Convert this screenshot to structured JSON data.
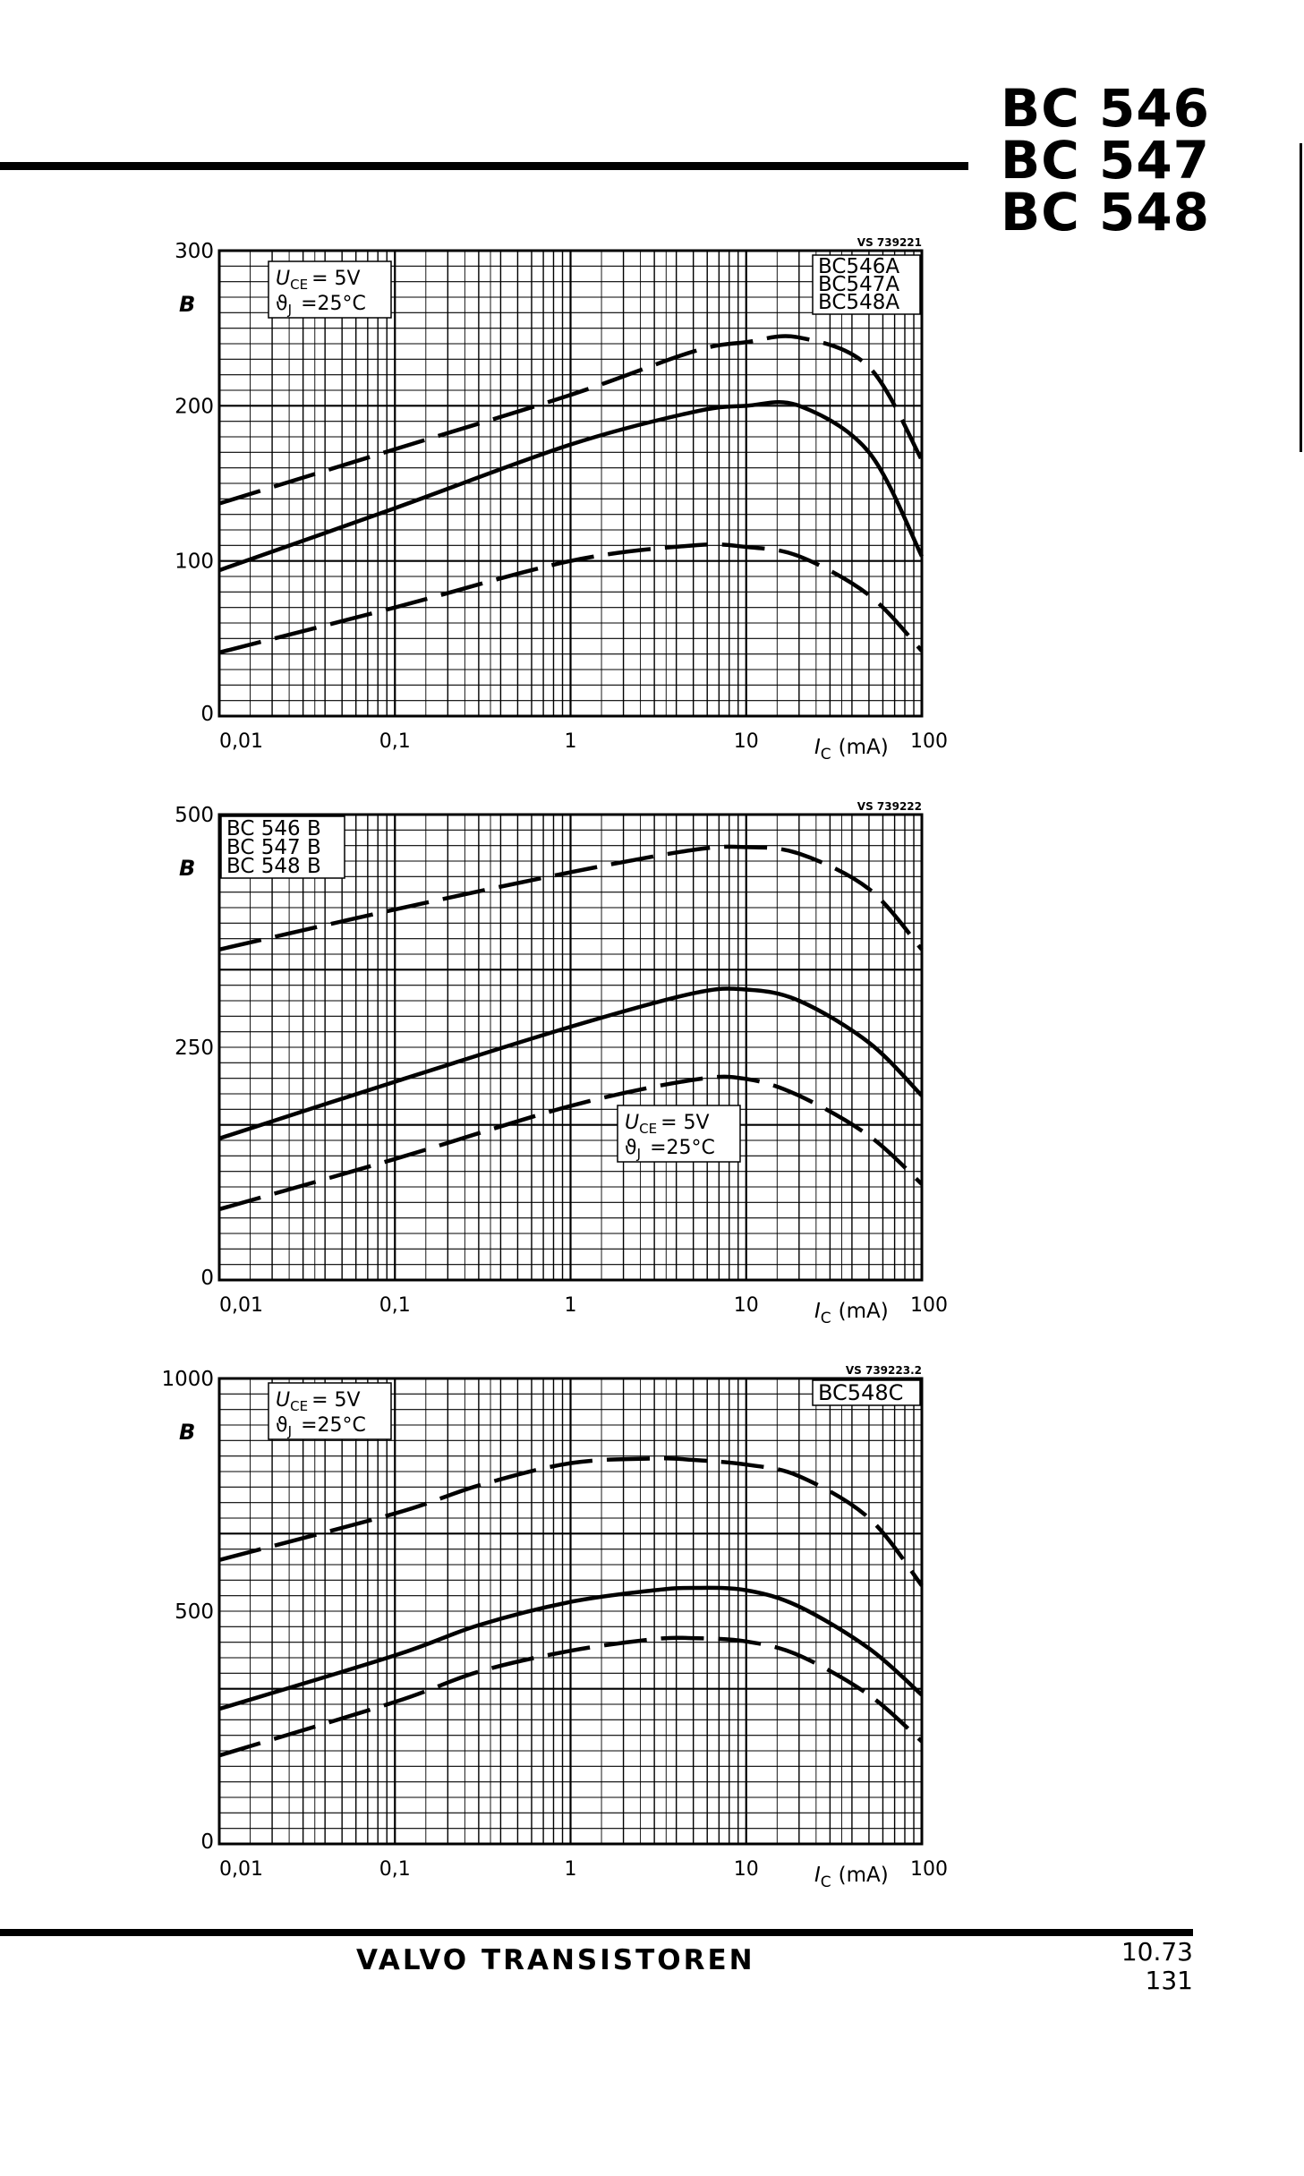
{
  "header": {
    "titles": [
      "BC 546",
      "BC 547",
      "BC 548"
    ]
  },
  "footer": {
    "brand": "VALVO TRANSISTOREN",
    "date": "10.73",
    "page": "131"
  },
  "chart_data": [
    {
      "type": "line",
      "ref_code": "VS 739221",
      "x_scale": "log",
      "xlim": [
        0.01,
        100
      ],
      "ylim": [
        0,
        300
      ],
      "x_ticks": [
        "0,01",
        "0,1",
        "1",
        "10",
        "100"
      ],
      "y_ticks": [
        "0",
        "100",
        "200",
        "300"
      ],
      "xlabel_sym": "I",
      "xlabel_sub": "C",
      "xlabel_unit": "(mA)",
      "ylabel": "B",
      "legend": [
        "BC546A",
        "BC547A",
        "BC548A"
      ],
      "conditions": {
        "u_sym": "U",
        "u_sub": "CE",
        "u_val": "= 5V",
        "t_sym": "ϑ",
        "t_sub": "J",
        "t_val": "=25°C"
      },
      "series": [
        {
          "style": "dashed",
          "x": [
            0.01,
            0.1,
            1,
            5,
            10,
            20,
            50,
            100
          ],
          "values": [
            137,
            172,
            207,
            235,
            241,
            244,
            225,
            165
          ]
        },
        {
          "style": "solid",
          "x": [
            0.01,
            0.1,
            1,
            5,
            10,
            20,
            50,
            100
          ],
          "values": [
            94,
            134,
            175,
            196,
            200,
            200,
            170,
            103
          ]
        },
        {
          "style": "dashed",
          "x": [
            0.01,
            0.1,
            1,
            5,
            10,
            20,
            50,
            100
          ],
          "values": [
            41,
            70,
            100,
            110,
            109,
            103,
            78,
            42
          ]
        }
      ]
    },
    {
      "type": "line",
      "ref_code": "VS 739222",
      "x_scale": "log",
      "xlim": [
        0.01,
        100
      ],
      "ylim": [
        0,
        500
      ],
      "x_ticks": [
        "0,01",
        "0,1",
        "1",
        "10",
        "100"
      ],
      "y_ticks": [
        "0",
        "250",
        "500"
      ],
      "xlabel_sym": "I",
      "xlabel_sub": "C",
      "xlabel_unit": "(mA)",
      "ylabel": "B",
      "legend": [
        "BC 546 B",
        "BC 547 B",
        "BC 548 B"
      ],
      "conditions": {
        "u_sym": "U",
        "u_sub": "CE",
        "u_val": "= 5V",
        "t_sym": "ϑ",
        "t_sub": "J",
        "t_val": "=25°C"
      },
      "series": [
        {
          "style": "dashed",
          "x": [
            0.01,
            0.1,
            1,
            5,
            10,
            20,
            50,
            100
          ],
          "values": [
            355,
            398,
            438,
            462,
            465,
            458,
            420,
            355
          ]
        },
        {
          "style": "solid",
          "x": [
            0.01,
            0.1,
            1,
            5,
            10,
            20,
            50,
            100
          ],
          "values": [
            152,
            213,
            272,
            308,
            312,
            300,
            255,
            198
          ]
        },
        {
          "style": "dashed",
          "x": [
            0.01,
            0.1,
            1,
            5,
            10,
            20,
            50,
            100
          ],
          "values": [
            76,
            130,
            187,
            215,
            216,
            198,
            155,
            103
          ]
        }
      ]
    },
    {
      "type": "line",
      "ref_code": "VS 739223.2",
      "x_scale": "log",
      "xlim": [
        0.01,
        100
      ],
      "ylim": [
        0,
        1000
      ],
      "x_ticks": [
        "0,01",
        "0,1",
        "1",
        "10",
        "100"
      ],
      "y_ticks": [
        "0",
        "500",
        "1000"
      ],
      "xlabel_sym": "I",
      "xlabel_sub": "C",
      "xlabel_unit": "(mA)",
      "ylabel": "B",
      "legend": [
        "BC548C"
      ],
      "conditions": {
        "u_sym": "U",
        "u_sub": "CE",
        "u_val": "= 5V",
        "t_sym": "ϑ",
        "t_sub": "J",
        "t_val": "=25°C"
      },
      "series": [
        {
          "style": "dashed",
          "x": [
            0.01,
            0.1,
            0.3,
            1,
            3,
            5,
            10,
            20,
            50,
            100
          ],
          "values": [
            610,
            710,
            770,
            818,
            828,
            825,
            815,
            790,
            700,
            555
          ]
        },
        {
          "style": "solid",
          "x": [
            0.01,
            0.1,
            0.3,
            1,
            3,
            5,
            10,
            20,
            50,
            100
          ],
          "values": [
            290,
            405,
            470,
            520,
            545,
            550,
            545,
            510,
            420,
            320
          ]
        },
        {
          "style": "dashed",
          "x": [
            0.01,
            0.1,
            0.3,
            1,
            3,
            5,
            10,
            20,
            50,
            100
          ],
          "values": [
            190,
            305,
            370,
            415,
            440,
            442,
            435,
            405,
            320,
            220
          ]
        }
      ]
    }
  ]
}
